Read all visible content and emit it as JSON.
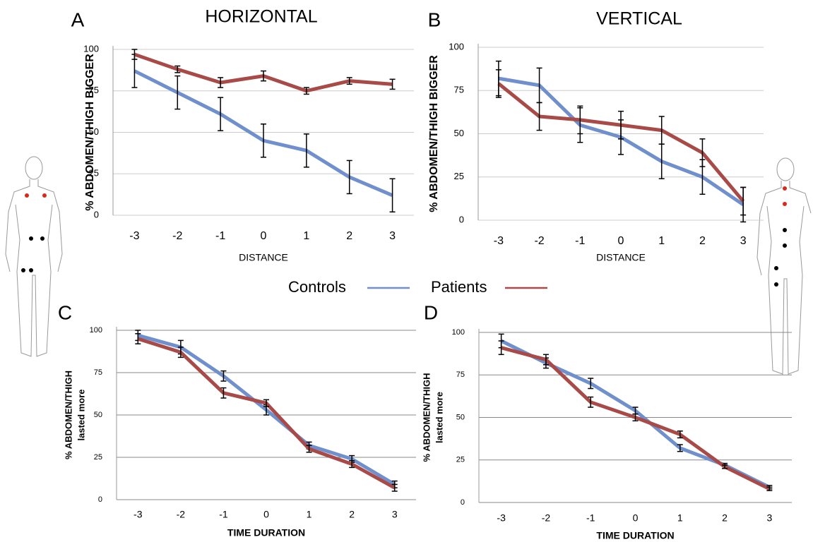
{
  "chart_data": [
    {
      "type": "line",
      "panel": "A",
      "title": "HORIZONTAL",
      "x_label": "DISTANCE",
      "y_label": "% ABDOMEN/THIGH BIGGER",
      "categories": [
        "-3",
        "-2",
        "-1",
        "0",
        "1",
        "2",
        "3"
      ],
      "ylim": [
        0,
        100
      ],
      "yticks": [
        0,
        25,
        50,
        75,
        100
      ],
      "grid": true,
      "series": [
        {
          "name": "Controls",
          "color": "#6f8fcd",
          "values": [
            87,
            74,
            61,
            45,
            39,
            23,
            12
          ],
          "errors": [
            10,
            10,
            10,
            10,
            10,
            10,
            10
          ]
        },
        {
          "name": "Patients",
          "color": "#a84b48",
          "values": [
            97,
            88,
            80,
            84,
            75,
            81,
            79
          ],
          "errors": [
            3,
            2,
            3,
            3,
            2,
            2,
            3
          ]
        }
      ]
    },
    {
      "type": "line",
      "panel": "B",
      "title": "VERTICAL",
      "x_label": "DISTANCE",
      "y_label": "% ABDOMEN/THIGH BIGGER",
      "categories": [
        "-3",
        "-2",
        "-1",
        "0",
        "1",
        "2",
        "3"
      ],
      "ylim": [
        0,
        100
      ],
      "yticks": [
        0,
        25,
        50,
        75,
        100
      ],
      "grid": true,
      "series": [
        {
          "color": "#6f8fcd",
          "values": [
            82,
            78,
            55,
            48,
            34,
            25,
            9
          ],
          "errors": [
            10,
            10,
            10,
            10,
            10,
            10,
            10
          ]
        },
        {
          "color": "#a84b48",
          "values": [
            79,
            60,
            58,
            55,
            52,
            39,
            11
          ],
          "errors": [
            8,
            8,
            8,
            8,
            8,
            8,
            8
          ]
        }
      ]
    },
    {
      "type": "line",
      "panel": "C",
      "x_label": "TIME DURATION",
      "y_label": [
        "% ABDOMEN/THIGH",
        "lasted more"
      ],
      "categories": [
        "-3",
        "-2",
        "-1",
        "0",
        "1",
        "2",
        "3"
      ],
      "ylim": [
        0,
        100
      ],
      "yticks": [
        0,
        25,
        50,
        75,
        100
      ],
      "grid": true,
      "series": [
        {
          "color": "#6f8fcd",
          "values": [
            97,
            90,
            73,
            53,
            32,
            24,
            9
          ],
          "errors": [
            3,
            4,
            3,
            3,
            2,
            2,
            2
          ]
        },
        {
          "color": "#a84b48",
          "values": [
            95,
            87,
            63,
            57,
            30,
            21,
            7
          ],
          "errors": [
            3,
            3,
            3,
            2,
            2,
            2,
            2
          ]
        }
      ]
    },
    {
      "type": "line",
      "panel": "D",
      "x_label": "TIME DURATION",
      "y_label": [
        "% ABDOMEN/THIGH",
        "lasted more"
      ],
      "categories": [
        "-3",
        "-2",
        "-1",
        "0",
        "1",
        "2",
        "3"
      ],
      "ylim": [
        0,
        100
      ],
      "yticks": [
        0,
        25,
        50,
        75,
        100
      ],
      "grid": true,
      "series": [
        {
          "color": "#6f8fcd",
          "values": [
            95,
            82,
            70,
            54,
            32,
            22,
            9
          ],
          "errors": [
            4,
            3,
            3,
            2,
            2,
            1,
            1
          ]
        },
        {
          "color": "#a84b48",
          "values": [
            91,
            84,
            59,
            50,
            40,
            21,
            8
          ],
          "errors": [
            4,
            3,
            3,
            2,
            2,
            1,
            1
          ]
        }
      ]
    }
  ]
}
